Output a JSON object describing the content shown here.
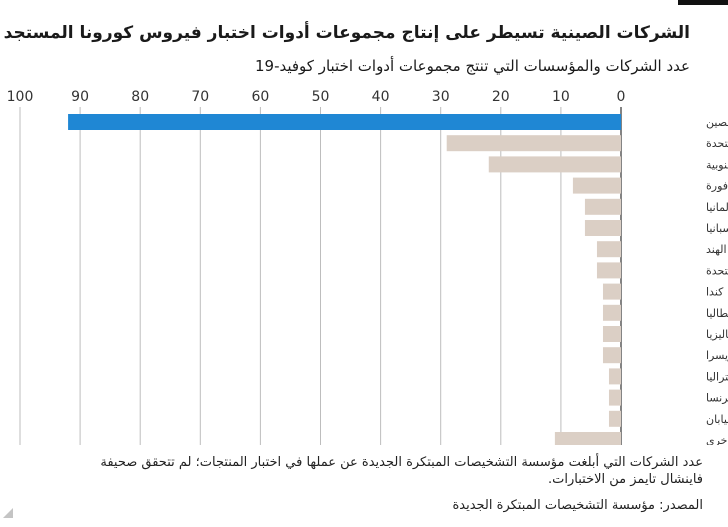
{
  "title": "الشركات الصينية تسيطر على إنتاج مجموعات أدوات اختبار فيروس كورونا المستجد",
  "subtitle": "عدد الشركات والمؤسسات التي تنتج مجموعات أدوات اختبار كوفيد-19",
  "note": "عدد الشركات التي أبلغت مؤسسة التشخيصات المبتكرة الجديدة عن عملها في اختبار المنتجات؛ لم تتحقق صحيفة فاينشال تايمز من الاختبارات.",
  "source": "المصدر: مؤسسة التشخيصات المبتكرة الجديدة",
  "colors": {
    "highlight": "#1f87d4",
    "bar": "#dbcfc5",
    "grid": "#bdbdbd",
    "axis": "#333333"
  },
  "chart_data": {
    "type": "bar",
    "orientation": "horizontal",
    "x_direction": "right-to-left",
    "xlim": [
      0,
      100
    ],
    "x_ticks": [
      0,
      10,
      20,
      30,
      40,
      50,
      60,
      70,
      80,
      90,
      100
    ],
    "categories": [
      "الصين",
      "الولايات المتحدة",
      "كوريا الجنوبية",
      "سنغافورة",
      "ألمانيا",
      "إسبانيا",
      "الهند",
      "المملكة المتحدة",
      "كندا",
      "إيطاليا",
      "ماليزيا",
      "سويسرا",
      "أستراليا",
      "فرنسا",
      "اليابان",
      "بلدان أخرى"
    ],
    "values": [
      92,
      29,
      22,
      8,
      6,
      6,
      4,
      4,
      3,
      3,
      3,
      3,
      2,
      2,
      2,
      11
    ],
    "highlight_index": 0,
    "grid": true
  }
}
